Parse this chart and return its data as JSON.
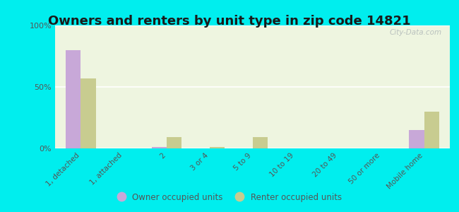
{
  "title": "Owners and renters by unit type in zip code 14821",
  "categories": [
    "1, detached",
    "1, attached",
    "2",
    "3 or 4",
    "5 to 9",
    "10 to 19",
    "20 to 49",
    "50 or more",
    "Mobile home"
  ],
  "owner_values": [
    80,
    0,
    1,
    0,
    0,
    0,
    0,
    0,
    15
  ],
  "renter_values": [
    57,
    0,
    9,
    1,
    9,
    0,
    0,
    0,
    30
  ],
  "owner_color": "#c8a8d8",
  "renter_color": "#c8cc90",
  "background_color": "#00eeee",
  "plot_bg": "#eef5e0",
  "ylim": [
    0,
    100
  ],
  "yticks": [
    0,
    50,
    100
  ],
  "ytick_labels": [
    "0%",
    "50%",
    "100%"
  ],
  "legend_owner": "Owner occupied units",
  "legend_renter": "Renter occupied units",
  "watermark": "City-Data.com",
  "title_fontsize": 13,
  "bar_width": 0.35,
  "grid_color": "#ffffff",
  "tick_color": "#555555",
  "title_color": "#1a1a1a"
}
